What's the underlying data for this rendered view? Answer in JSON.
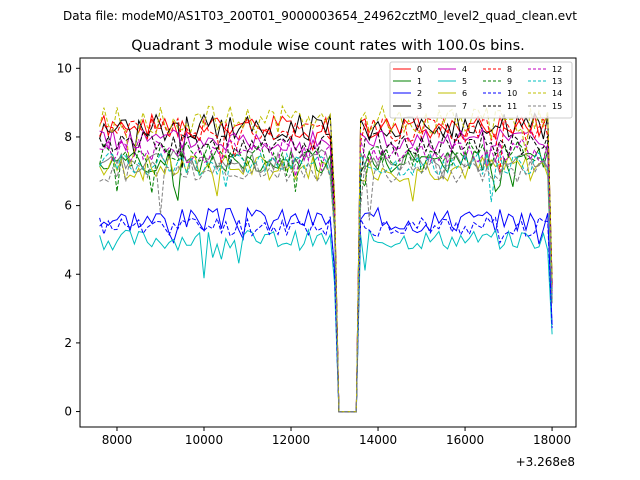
{
  "chart_data": {
    "type": "line",
    "suptitle": "Data file: modeM0/AS1T03_200T01_9000003654_24962cztM0_level2_quad_clean.evt",
    "title": "Quadrant 3 module wise count rates with 100.0s bins.",
    "xlabel": "",
    "ylabel": "",
    "x_offset_label": "+3.268e8",
    "xlim": [
      7150,
      18550
    ],
    "ylim": [
      -0.45,
      10.3
    ],
    "x_ticks": [
      8000,
      10000,
      12000,
      14000,
      16000,
      18000
    ],
    "y_ticks": [
      0,
      2,
      4,
      6,
      8,
      10
    ],
    "legend_position": "top-right",
    "legend_columns": 4,
    "gaps": [
      {
        "start": 13100,
        "end": 13500,
        "value": 0
      }
    ],
    "x_start": 7600,
    "x_end": 18000,
    "bin_size": 100,
    "series": [
      {
        "name": "0",
        "color": "#ff0000",
        "dash": false,
        "level": 8.3,
        "jitter": 0.35,
        "seed": 1
      },
      {
        "name": "1",
        "color": "#008000",
        "dash": false,
        "level": 7.3,
        "jitter": 0.35,
        "seed": 2
      },
      {
        "name": "2",
        "color": "#0000ff",
        "dash": false,
        "level": 5.6,
        "jitter": 0.35,
        "seed": 3
      },
      {
        "name": "3",
        "color": "#000000",
        "dash": false,
        "level": 8.3,
        "jitter": 0.4,
        "seed": 4
      },
      {
        "name": "4",
        "color": "#c000c0",
        "dash": false,
        "level": 7.9,
        "jitter": 0.35,
        "seed": 5
      },
      {
        "name": "5",
        "color": "#00bfbf",
        "dash": false,
        "level": 5.0,
        "jitter": 0.3,
        "seed": 6
      },
      {
        "name": "6",
        "color": "#bfbf00",
        "dash": false,
        "level": 7.1,
        "jitter": 0.4,
        "seed": 7
      },
      {
        "name": "7",
        "color": "#808080",
        "dash": false,
        "level": 7.3,
        "jitter": 0.35,
        "seed": 8
      },
      {
        "name": "8",
        "color": "#ff0000",
        "dash": true,
        "level": 8.2,
        "jitter": 0.35,
        "seed": 9
      },
      {
        "name": "9",
        "color": "#008000",
        "dash": true,
        "level": 7.5,
        "jitter": 0.35,
        "seed": 10
      },
      {
        "name": "10",
        "color": "#0000ff",
        "dash": true,
        "level": 5.4,
        "jitter": 0.3,
        "seed": 11
      },
      {
        "name": "11",
        "color": "#000000",
        "dash": true,
        "level": 7.8,
        "jitter": 0.35,
        "seed": 12
      },
      {
        "name": "12",
        "color": "#c000c0",
        "dash": true,
        "level": 7.6,
        "jitter": 0.35,
        "seed": 13
      },
      {
        "name": "13",
        "color": "#00bfbf",
        "dash": true,
        "level": 7.2,
        "jitter": 0.35,
        "seed": 14
      },
      {
        "name": "14",
        "color": "#bfbf00",
        "dash": true,
        "level": 8.5,
        "jitter": 0.4,
        "seed": 15
      },
      {
        "name": "15",
        "color": "#808080",
        "dash": true,
        "level": 7.0,
        "jitter": 0.35,
        "seed": 16
      }
    ]
  }
}
